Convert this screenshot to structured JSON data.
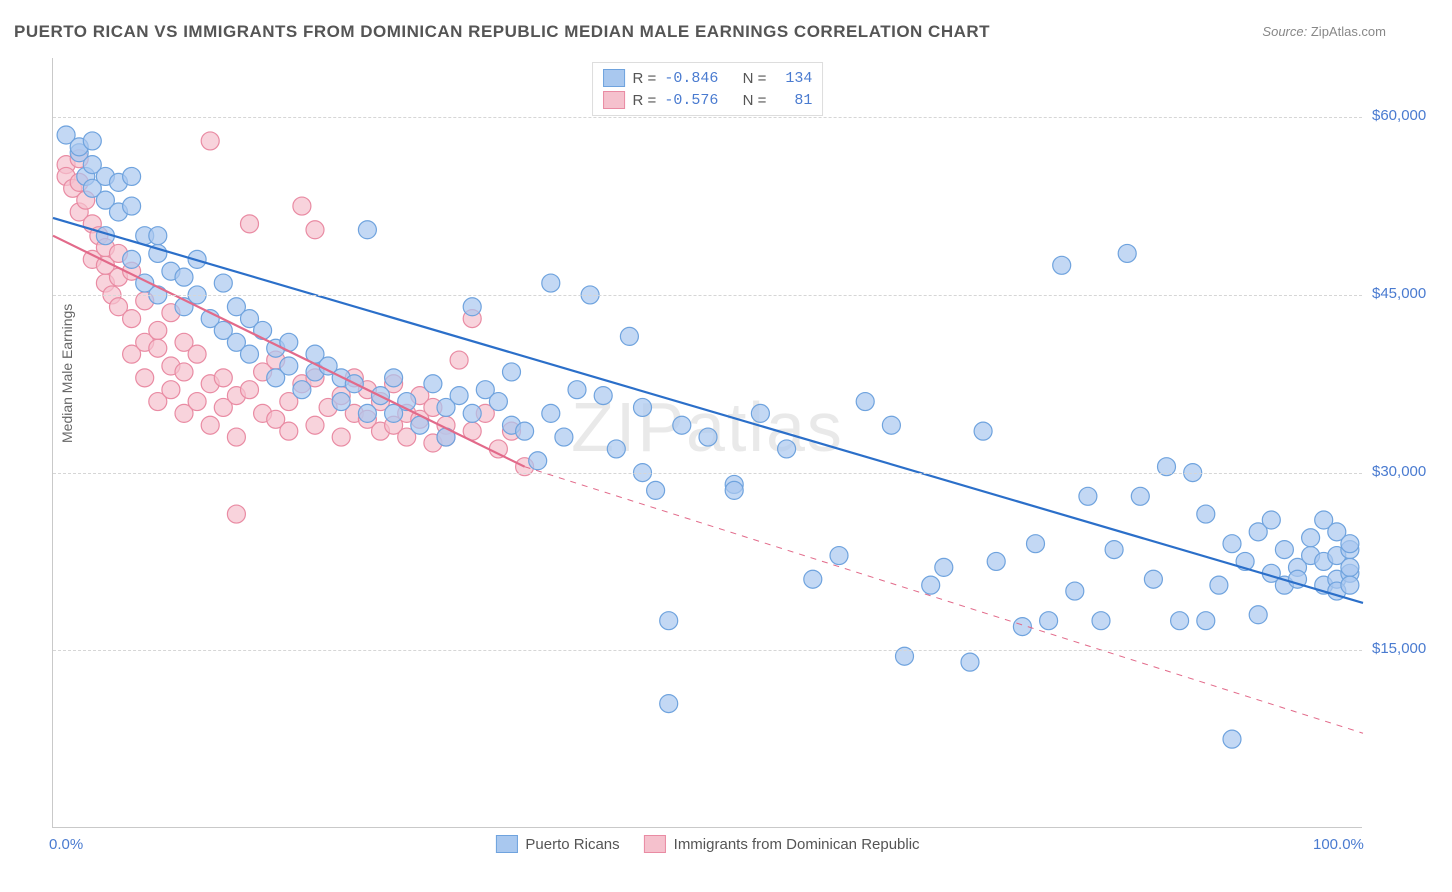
{
  "title": "PUERTO RICAN VS IMMIGRANTS FROM DOMINICAN REPUBLIC MEDIAN MALE EARNINGS CORRELATION CHART",
  "source_label": "Source:",
  "source_value": "ZipAtlas.com",
  "watermark": "ZIPatlas",
  "y_axis": {
    "label": "Median Male Earnings",
    "min": 0,
    "max": 65000,
    "ticks": [
      15000,
      30000,
      45000,
      60000
    ],
    "tick_labels": [
      "$15,000",
      "$30,000",
      "$45,000",
      "$60,000"
    ],
    "tick_color": "#4a7bd0"
  },
  "x_axis": {
    "min": 0,
    "max": 100,
    "ticks": [
      0,
      100
    ],
    "tick_labels": [
      "0.0%",
      "100.0%"
    ],
    "tick_color": "#4a7bd0"
  },
  "grid_color": "#d6d6d6",
  "background_color": "#ffffff",
  "series": [
    {
      "name": "Puerto Ricans",
      "fill": "#a9c8ef",
      "stroke": "#6fa3de",
      "line_color": "#2b6fc9",
      "marker_radius": 9,
      "marker_opacity": 0.7,
      "R": "-0.846",
      "N": "134",
      "trend": {
        "x1": 0,
        "y1": 51500,
        "x2": 100,
        "y2": 19000,
        "width": 2.2
      },
      "trend_extrapolated": false,
      "points": [
        [
          1,
          58500
        ],
        [
          2,
          57000
        ],
        [
          2,
          57500
        ],
        [
          2.5,
          55000
        ],
        [
          3,
          56000
        ],
        [
          3,
          54000
        ],
        [
          3,
          58000
        ],
        [
          4,
          55000
        ],
        [
          4,
          53000
        ],
        [
          4,
          50000
        ],
        [
          5,
          52000
        ],
        [
          5,
          54500
        ],
        [
          6,
          48000
        ],
        [
          6,
          52500
        ],
        [
          6,
          55000
        ],
        [
          7,
          50000
        ],
        [
          7,
          46000
        ],
        [
          8,
          48500
        ],
        [
          8,
          50000
        ],
        [
          8,
          45000
        ],
        [
          9,
          47000
        ],
        [
          10,
          46500
        ],
        [
          10,
          44000
        ],
        [
          11,
          45000
        ],
        [
          11,
          48000
        ],
        [
          12,
          43000
        ],
        [
          13,
          42000
        ],
        [
          13,
          46000
        ],
        [
          14,
          41000
        ],
        [
          14,
          44000
        ],
        [
          15,
          40000
        ],
        [
          15,
          43000
        ],
        [
          16,
          42000
        ],
        [
          17,
          40500
        ],
        [
          17,
          38000
        ],
        [
          18,
          39000
        ],
        [
          18,
          41000
        ],
        [
          19,
          37000
        ],
        [
          20,
          38500
        ],
        [
          20,
          40000
        ],
        [
          21,
          39000
        ],
        [
          22,
          36000
        ],
        [
          22,
          38000
        ],
        [
          23,
          37500
        ],
        [
          24,
          35000
        ],
        [
          24,
          50500
        ],
        [
          25,
          36500
        ],
        [
          26,
          35000
        ],
        [
          26,
          38000
        ],
        [
          27,
          36000
        ],
        [
          28,
          34000
        ],
        [
          29,
          37500
        ],
        [
          30,
          35500
        ],
        [
          30,
          33000
        ],
        [
          31,
          36500
        ],
        [
          32,
          44000
        ],
        [
          32,
          35000
        ],
        [
          33,
          37000
        ],
        [
          34,
          36000
        ],
        [
          35,
          34000
        ],
        [
          35,
          38500
        ],
        [
          36,
          33500
        ],
        [
          37,
          31000
        ],
        [
          38,
          35000
        ],
        [
          38,
          46000
        ],
        [
          39,
          33000
        ],
        [
          40,
          37000
        ],
        [
          41,
          45000
        ],
        [
          42,
          36500
        ],
        [
          43,
          32000
        ],
        [
          44,
          41500
        ],
        [
          45,
          30000
        ],
        [
          45,
          35500
        ],
        [
          46,
          28500
        ],
        [
          47,
          17500
        ],
        [
          47,
          10500
        ],
        [
          48,
          34000
        ],
        [
          50,
          33000
        ],
        [
          52,
          29000
        ],
        [
          52,
          28500
        ],
        [
          54,
          35000
        ],
        [
          56,
          32000
        ],
        [
          58,
          21000
        ],
        [
          60,
          23000
        ],
        [
          62,
          36000
        ],
        [
          64,
          34000
        ],
        [
          65,
          14500
        ],
        [
          67,
          20500
        ],
        [
          68,
          22000
        ],
        [
          70,
          14000
        ],
        [
          71,
          33500
        ],
        [
          72,
          22500
        ],
        [
          74,
          17000
        ],
        [
          75,
          24000
        ],
        [
          76,
          17500
        ],
        [
          77,
          47500
        ],
        [
          78,
          20000
        ],
        [
          79,
          28000
        ],
        [
          80,
          17500
        ],
        [
          81,
          23500
        ],
        [
          82,
          48500
        ],
        [
          83,
          28000
        ],
        [
          84,
          21000
        ],
        [
          85,
          30500
        ],
        [
          86,
          17500
        ],
        [
          87,
          30000
        ],
        [
          88,
          26500
        ],
        [
          88,
          17500
        ],
        [
          89,
          20500
        ],
        [
          90,
          24000
        ],
        [
          90,
          7500
        ],
        [
          91,
          22500
        ],
        [
          92,
          25000
        ],
        [
          92,
          18000
        ],
        [
          93,
          21500
        ],
        [
          93,
          26000
        ],
        [
          94,
          20500
        ],
        [
          94,
          23500
        ],
        [
          95,
          22000
        ],
        [
          95,
          21000
        ],
        [
          96,
          23000
        ],
        [
          96,
          24500
        ],
        [
          97,
          20500
        ],
        [
          97,
          22500
        ],
        [
          97,
          26000
        ],
        [
          98,
          21000
        ],
        [
          98,
          20000
        ],
        [
          98,
          23000
        ],
        [
          98,
          25000
        ],
        [
          99,
          21500
        ],
        [
          99,
          23500
        ],
        [
          99,
          22000
        ],
        [
          99,
          20500
        ],
        [
          99,
          24000
        ]
      ]
    },
    {
      "name": "Immigrants from Dominican Republic",
      "fill": "#f5c1cd",
      "stroke": "#e98ba3",
      "line_color": "#e26a8a",
      "marker_radius": 9,
      "marker_opacity": 0.7,
      "R": "-0.576",
      "N": "81",
      "trend": {
        "x1": 0,
        "y1": 50000,
        "x2": 36,
        "y2": 30500,
        "width": 2.2
      },
      "trend_extrapolated": true,
      "trend_extra": {
        "x1": 36,
        "y1": 30500,
        "x2": 100,
        "y2": 8000
      },
      "points": [
        [
          1,
          56000
        ],
        [
          1,
          55000
        ],
        [
          1.5,
          54000
        ],
        [
          2,
          56500
        ],
        [
          2,
          52000
        ],
        [
          2,
          54500
        ],
        [
          2.5,
          53000
        ],
        [
          3,
          51000
        ],
        [
          3,
          48000
        ],
        [
          3.5,
          50000
        ],
        [
          4,
          49000
        ],
        [
          4,
          46000
        ],
        [
          4,
          47500
        ],
        [
          4.5,
          45000
        ],
        [
          5,
          48500
        ],
        [
          5,
          44000
        ],
        [
          5,
          46500
        ],
        [
          6,
          43000
        ],
        [
          6,
          47000
        ],
        [
          6,
          40000
        ],
        [
          7,
          44500
        ],
        [
          7,
          41000
        ],
        [
          7,
          38000
        ],
        [
          8,
          42000
        ],
        [
          8,
          40500
        ],
        [
          8,
          36000
        ],
        [
          9,
          39000
        ],
        [
          9,
          43500
        ],
        [
          9,
          37000
        ],
        [
          10,
          41000
        ],
        [
          10,
          38500
        ],
        [
          10,
          35000
        ],
        [
          11,
          36000
        ],
        [
          11,
          40000
        ],
        [
          12,
          37500
        ],
        [
          12,
          34000
        ],
        [
          12,
          58000
        ],
        [
          13,
          38000
        ],
        [
          13,
          35500
        ],
        [
          14,
          36500
        ],
        [
          14,
          33000
        ],
        [
          14,
          26500
        ],
        [
          15,
          37000
        ],
        [
          15,
          51000
        ],
        [
          16,
          35000
        ],
        [
          16,
          38500
        ],
        [
          17,
          34500
        ],
        [
          17,
          39500
        ],
        [
          18,
          36000
        ],
        [
          18,
          33500
        ],
        [
          19,
          37500
        ],
        [
          19,
          52500
        ],
        [
          20,
          34000
        ],
        [
          20,
          38000
        ],
        [
          20,
          50500
        ],
        [
          21,
          35500
        ],
        [
          22,
          36500
        ],
        [
          22,
          33000
        ],
        [
          23,
          35000
        ],
        [
          23,
          38000
        ],
        [
          24,
          34500
        ],
        [
          24,
          37000
        ],
        [
          25,
          33500
        ],
        [
          25,
          36000
        ],
        [
          26,
          34000
        ],
        [
          26,
          37500
        ],
        [
          27,
          35000
        ],
        [
          27,
          33000
        ],
        [
          28,
          34500
        ],
        [
          28,
          36500
        ],
        [
          29,
          35500
        ],
        [
          29,
          32500
        ],
        [
          30,
          34000
        ],
        [
          30,
          33000
        ],
        [
          31,
          39500
        ],
        [
          32,
          33500
        ],
        [
          32,
          43000
        ],
        [
          33,
          35000
        ],
        [
          34,
          32000
        ],
        [
          35,
          33500
        ],
        [
          36,
          30500
        ]
      ]
    }
  ],
  "bottom_legend": [
    {
      "label": "Puerto Ricans",
      "fill": "#a9c8ef",
      "stroke": "#6fa3de"
    },
    {
      "label": "Immigrants from Dominican Republic",
      "fill": "#f5c1cd",
      "stroke": "#e98ba3"
    }
  ]
}
